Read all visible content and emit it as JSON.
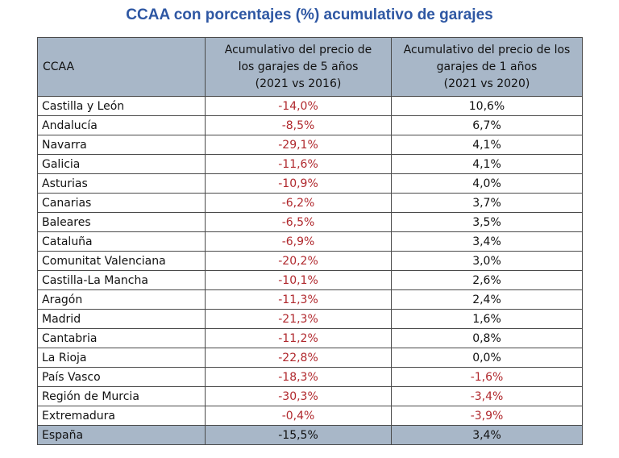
{
  "title": "CCAA con porcentajes (%) acumulativo de garajes",
  "colors": {
    "title": "#2e57a3",
    "header_bg": "#a8b7c8",
    "negative": "#b0282d"
  },
  "chart_data": {
    "type": "table",
    "title": "CCAA con porcentajes (%) acumulativo de garajes",
    "columns": [
      "CCAA",
      "Acumulativo del precio de los garajes de 5 años (2021 vs 2016)",
      "Acumulativo del precio de los garajes de 1 años (2021 vs 2020)"
    ],
    "rows": [
      [
        "Castilla y León",
        "-14,0%",
        "10,6%"
      ],
      [
        "Andalucía",
        "-8,5%",
        "6,7%"
      ],
      [
        "Navarra",
        "-29,1%",
        "4,1%"
      ],
      [
        "Galicia",
        "-11,6%",
        "4,1%"
      ],
      [
        "Asturias",
        "-10,9%",
        "4,0%"
      ],
      [
        "Canarias",
        "-6,2%",
        "3,7%"
      ],
      [
        "Baleares",
        "-6,5%",
        "3,5%"
      ],
      [
        "Cataluña",
        "-6,9%",
        "3,4%"
      ],
      [
        "Comunitat Valenciana",
        "-20,2%",
        "3,0%"
      ],
      [
        "Castilla-La Mancha",
        "-10,1%",
        "2,6%"
      ],
      [
        "Aragón",
        "-11,3%",
        "2,4%"
      ],
      [
        "Madrid",
        "-21,3%",
        "1,6%"
      ],
      [
        "Cantabria",
        "-11,2%",
        "0,8%"
      ],
      [
        "La Rioja",
        "-22,8%",
        "0,0%"
      ],
      [
        "País Vasco",
        "-18,3%",
        "-1,6%"
      ],
      [
        "Región de Murcia",
        "-30,3%",
        "-3,4%"
      ],
      [
        "Extremadura",
        "-0,4%",
        "-3,9%"
      ]
    ],
    "total": [
      "España",
      "-15,5%",
      "3,4%"
    ]
  },
  "header": {
    "c0": "CCAA",
    "c1_lines": [
      "Acumulativo del precio de",
      "los garajes de 5 años",
      "(2021 vs 2016)"
    ],
    "c2_lines": [
      "Acumulativo del precio de los",
      "garajes de 1 años",
      "(2021 vs 2020)"
    ]
  }
}
